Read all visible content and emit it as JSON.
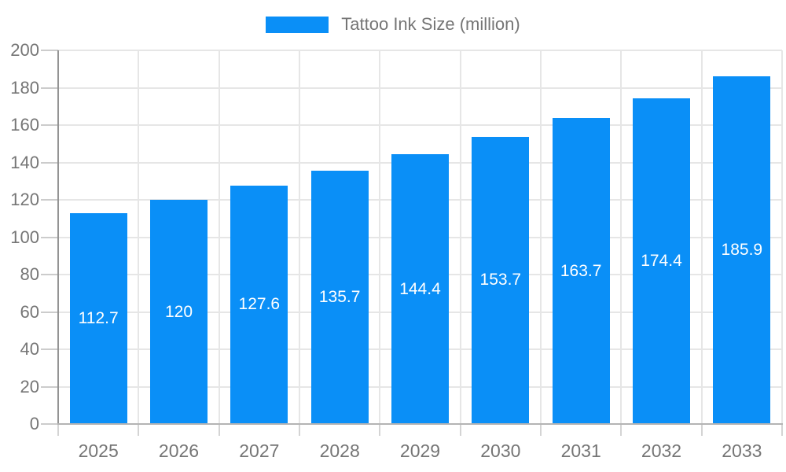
{
  "legend": {
    "label": "Tattoo Ink Size (million)"
  },
  "chart_data": {
    "type": "bar",
    "title": "",
    "xlabel": "",
    "ylabel": "",
    "categories": [
      "2025",
      "2026",
      "2027",
      "2028",
      "2029",
      "2030",
      "2031",
      "2032",
      "2033"
    ],
    "series": [
      {
        "name": "Tattoo Ink Size (million)",
        "values": [
          112.7,
          120,
          127.6,
          135.7,
          144.4,
          153.7,
          163.7,
          174.4,
          185.9
        ]
      }
    ],
    "value_labels": [
      "112.7",
      "120",
      "127.6",
      "135.7",
      "144.4",
      "153.7",
      "163.7",
      "174.4",
      "185.9"
    ],
    "ylim": [
      0,
      200
    ],
    "yticks": [
      0,
      20,
      40,
      60,
      80,
      100,
      120,
      140,
      160,
      180,
      200
    ],
    "grid": true,
    "legend_position": "top",
    "colors": {
      "bar": "#0a8ff7",
      "grid": "#e6e6e6",
      "tick": "#cccccc",
      "xtick": "#d4d4d4",
      "axis": "#949494",
      "axis_bottom": "#b4b4b4",
      "text": "#757575",
      "value_label": "#ffffff"
    }
  }
}
